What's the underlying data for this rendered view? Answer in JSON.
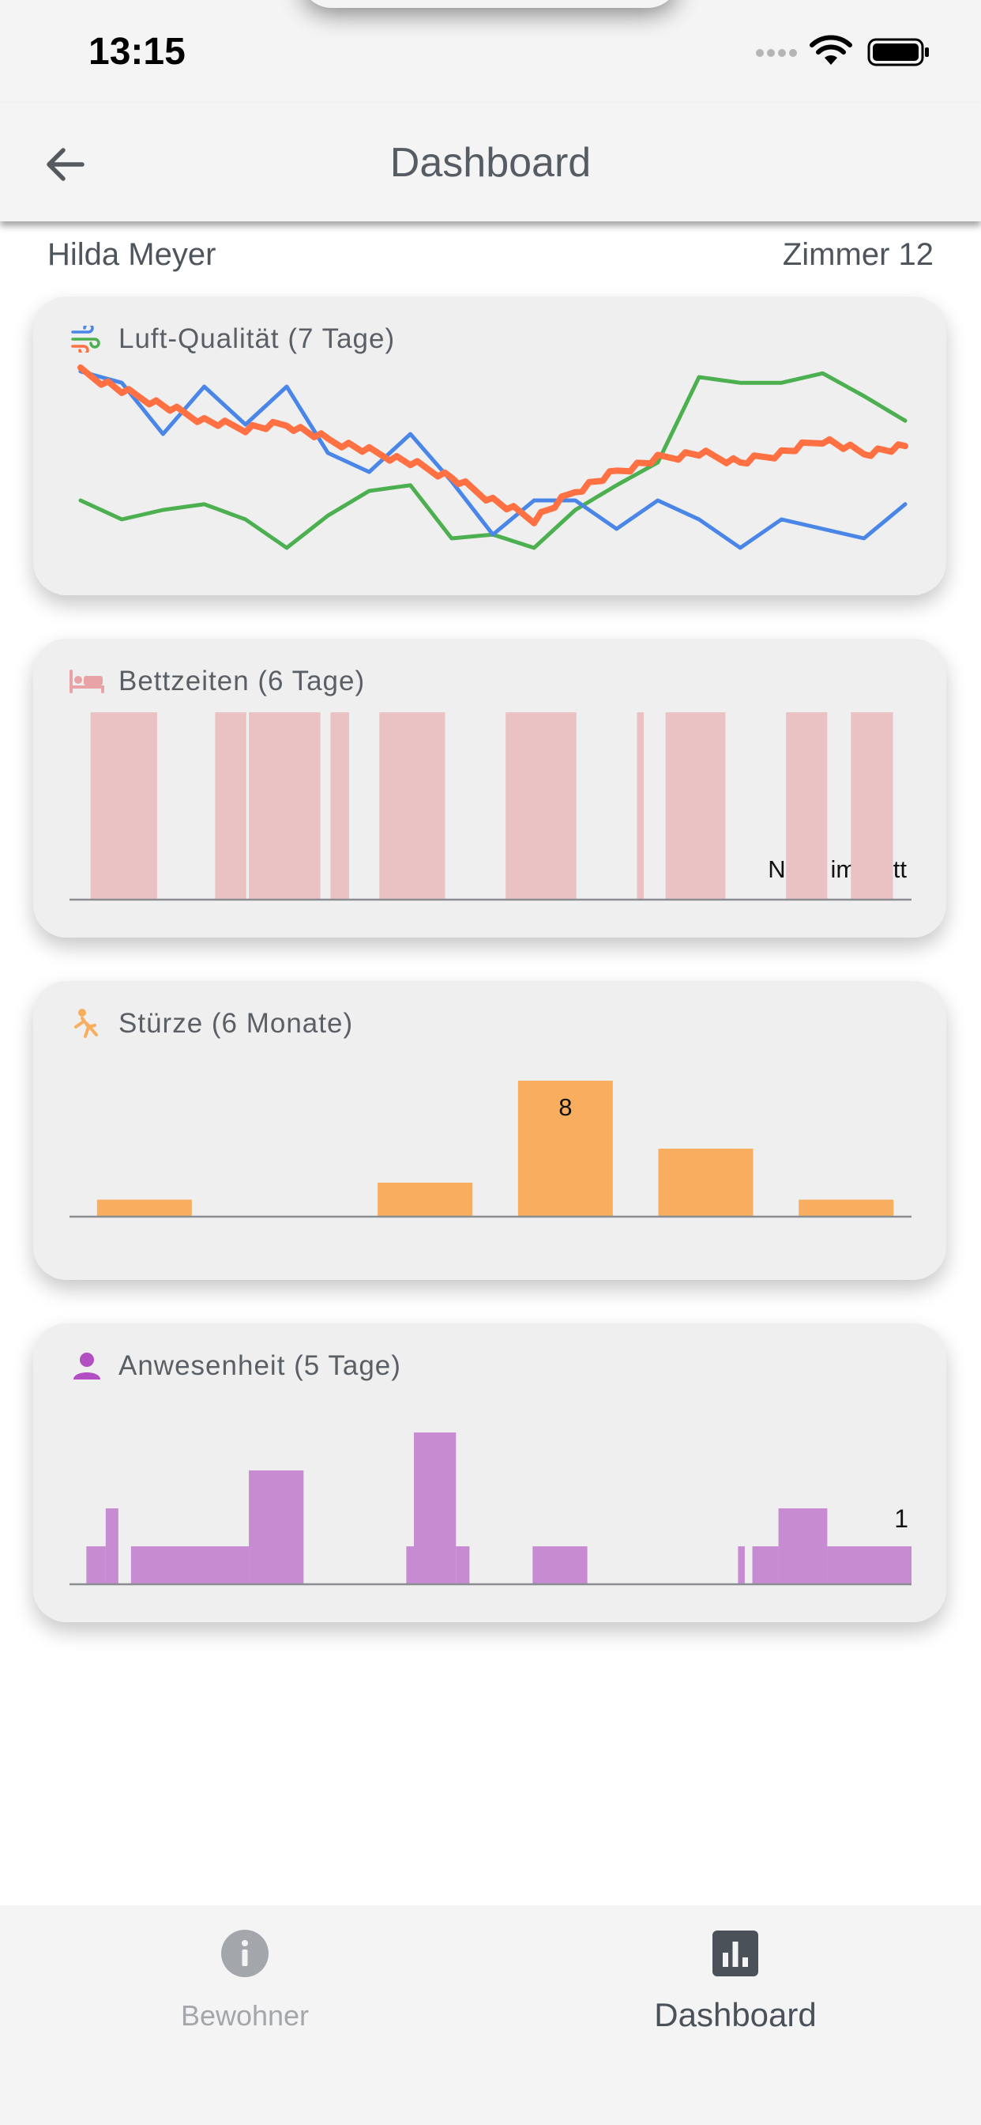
{
  "status_bar": {
    "time": "13:15"
  },
  "header": {
    "title": "Dashboard",
    "back_icon": "arrow-left-icon"
  },
  "resident": {
    "name": "Hilda Meyer",
    "room": "Zimmer 12"
  },
  "cards": {
    "air": {
      "title": "Luft-Qualität (7 Tage)",
      "icon": "air-icon"
    },
    "bed": {
      "title": "Bettzeiten (6 Tage)",
      "icon": "bed-icon",
      "label": "Nicht im Bett"
    },
    "falls": {
      "title": "Stürze (6 Monate)",
      "icon": "fall-icon",
      "label": "8"
    },
    "presence": {
      "title": "Anwesenheit (5 Tage)",
      "icon": "person-icon",
      "label": "1"
    }
  },
  "bottom_nav": {
    "items": [
      {
        "label": "Bewohner",
        "icon": "info-icon",
        "active": false
      },
      {
        "label": "Dashboard",
        "icon": "bar-chart-icon",
        "active": true
      }
    ]
  },
  "colors": {
    "air_green": "#4caf50",
    "air_blue": "#4a86e8",
    "air_orange": "#ff7043",
    "bed": "#eac2c4",
    "falls": "#f8ae5e",
    "presence": "#c78bd2"
  },
  "chart_data": [
    {
      "type": "line",
      "title": "Luft-Qualität (7 Tage)",
      "x": [
        0,
        0.05,
        0.1,
        0.15,
        0.2,
        0.25,
        0.3,
        0.35,
        0.4,
        0.45,
        0.5,
        0.55,
        0.6,
        0.65,
        0.7,
        0.75,
        0.8,
        0.85,
        0.9,
        0.95,
        1.0
      ],
      "series": [
        {
          "values": [
            0.3,
            0.2,
            0.25,
            0.28,
            0.2,
            0.05,
            0.22,
            0.35,
            0.38,
            0.1,
            0.12,
            0.05,
            0.25,
            0.38,
            0.5,
            0.95,
            0.92,
            0.92,
            0.97,
            0.85,
            0.72
          ]
        },
        {
          "values": [
            0.98,
            0.92,
            0.65,
            0.9,
            0.7,
            0.9,
            0.55,
            0.45,
            0.65,
            0.4,
            0.12,
            0.3,
            0.3,
            0.15,
            0.3,
            0.2,
            0.05,
            0.2,
            0.15,
            0.1,
            0.28
          ]
        },
        {
          "values": [
            0.98,
            0.88,
            0.8,
            0.72,
            0.68,
            0.7,
            0.62,
            0.56,
            0.5,
            0.42,
            0.3,
            0.2,
            0.35,
            0.45,
            0.52,
            0.55,
            0.5,
            0.55,
            0.62,
            0.55,
            0.58
          ]
        }
      ]
    },
    {
      "type": "bar",
      "title": "Bettzeiten (6 Tage)",
      "intervals": [
        [
          0.025,
          0.104
        ],
        [
          0.173,
          0.21
        ],
        [
          0.213,
          0.298
        ],
        [
          0.31,
          0.332
        ],
        [
          0.368,
          0.446
        ],
        [
          0.518,
          0.602
        ],
        [
          0.674,
          0.682
        ],
        [
          0.708,
          0.779
        ],
        [
          0.851,
          0.9
        ],
        [
          0.928,
          0.978
        ]
      ],
      "annotations": [
        "Nicht im Bett"
      ]
    },
    {
      "type": "bar",
      "title": "Stürze (6 Monate)",
      "values": [
        1,
        0,
        2,
        8,
        4,
        1
      ],
      "annotations": [
        "8"
      ]
    },
    {
      "type": "bar",
      "title": "Anwesenheit (5 Tage)",
      "steps": [
        [
          0.02,
          0.043,
          0.25
        ],
        [
          0.043,
          0.058,
          0.5
        ],
        [
          0.073,
          0.213,
          0.25
        ],
        [
          0.213,
          0.278,
          0.75
        ],
        [
          0.4,
          0.409,
          0.25
        ],
        [
          0.409,
          0.459,
          1.0
        ],
        [
          0.459,
          0.475,
          0.25
        ],
        [
          0.55,
          0.615,
          0.25
        ],
        [
          0.794,
          0.802,
          0.25
        ],
        [
          0.811,
          0.842,
          0.25
        ],
        [
          0.842,
          0.9,
          0.5
        ],
        [
          0.9,
          0.916,
          0.25
        ],
        [
          0.916,
          1.0,
          0.25
        ]
      ],
      "annotations": [
        "1"
      ]
    }
  ]
}
